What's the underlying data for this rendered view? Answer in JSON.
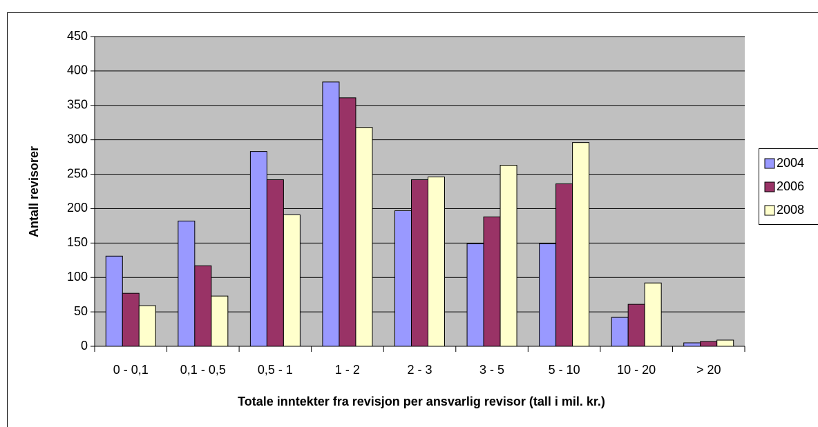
{
  "chart_data": {
    "type": "bar",
    "y_label": "Antall revisorer",
    "x_label": "Totale inntekter fra revisjon per ansvarlig revisor (tall i mil. kr.)",
    "categories": [
      "0 - 0,1",
      "0,1 - 0,5",
      "0,5 - 1",
      "1 - 2",
      "2 - 3",
      "3 - 5",
      "5 - 10",
      "10 - 20",
      "> 20"
    ],
    "series": [
      {
        "name": "2004",
        "color": "#9999ff",
        "values": [
          131,
          182,
          283,
          384,
          197,
          149,
          149,
          42,
          5
        ]
      },
      {
        "name": "2006",
        "color": "#993366",
        "values": [
          77,
          117,
          242,
          361,
          242,
          188,
          236,
          61,
          7
        ]
      },
      {
        "name": "2008",
        "color": "#ffffcc",
        "values": [
          59,
          73,
          191,
          318,
          246,
          263,
          296,
          92,
          9
        ]
      }
    ],
    "ylim": [
      0,
      450
    ],
    "yticks": [
      0,
      50,
      100,
      150,
      200,
      250,
      300,
      350,
      400,
      450
    ],
    "grid": true,
    "plot_background": "#c0c0c0",
    "legend": "right"
  }
}
